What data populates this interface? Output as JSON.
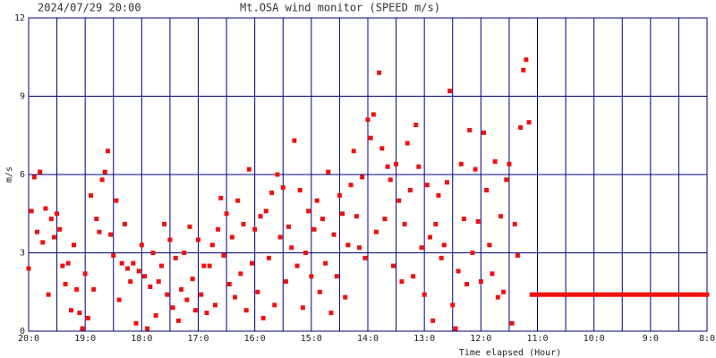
{
  "chart_data": {
    "type": "scatter",
    "timestamp": "2024/07/29 20:00",
    "title": "Mt.OSA wind monitor (SPEED m/s)",
    "ylabel": "m/s",
    "xlabel": "Time elapsed (Hour)",
    "xlim": [
      0,
      12
    ],
    "ylim": [
      0,
      12
    ],
    "xticks": [
      {
        "value": 0,
        "label": "20:0"
      },
      {
        "value": 1,
        "label": "19:0"
      },
      {
        "value": 2,
        "label": "18:0"
      },
      {
        "value": 3,
        "label": "17:0"
      },
      {
        "value": 4,
        "label": "16:0"
      },
      {
        "value": 5,
        "label": "15:0"
      },
      {
        "value": 6,
        "label": "14:0"
      },
      {
        "value": 7,
        "label": "13:0"
      },
      {
        "value": 8,
        "label": "12:0"
      },
      {
        "value": 9,
        "label": "11:0"
      },
      {
        "value": 10,
        "label": "10:0"
      },
      {
        "value": 11,
        "label": "9:0"
      },
      {
        "value": 12,
        "label": "8:0"
      }
    ],
    "yticks": [
      0,
      3,
      6,
      9,
      12
    ],
    "grid": true,
    "grid_color": "#000080",
    "series": [
      {
        "color": "#ee1111",
        "x": [
          0,
          0.05,
          0.1,
          0.15,
          0.2,
          0.25,
          0.3,
          0.35,
          0.4,
          0.45,
          0.5,
          0.55,
          0.6,
          0.65,
          0.7,
          0.75,
          0.8,
          0.85,
          0.9,
          0.95,
          1,
          1.05,
          1.1,
          1.15,
          1.2,
          1.25,
          1.3,
          1.35,
          1.4,
          1.45,
          1.5,
          1.55,
          1.6,
          1.65,
          1.7,
          1.75,
          1.8,
          1.85,
          1.9,
          1.95,
          2,
          2.05,
          2.1,
          2.15,
          2.2,
          2.25,
          2.3,
          2.35,
          2.4,
          2.45,
          2.5,
          2.55,
          2.6,
          2.65,
          2.7,
          2.75,
          2.8,
          2.85,
          2.9,
          2.95,
          3,
          3.05,
          3.1,
          3.15,
          3.2,
          3.25,
          3.3,
          3.35,
          3.4,
          3.45,
          3.5,
          3.55,
          3.6,
          3.65,
          3.7,
          3.75,
          3.8,
          3.85,
          3.9,
          3.95,
          4,
          4.05,
          4.1,
          4.15,
          4.2,
          4.25,
          4.3,
          4.35,
          4.4,
          4.45,
          4.5,
          4.55,
          4.6,
          4.65,
          4.7,
          4.75,
          4.8,
          4.85,
          4.9,
          4.95,
          5,
          5.05,
          5.1,
          5.15,
          5.2,
          5.25,
          5.3,
          5.35,
          5.4,
          5.45,
          5.5,
          5.55,
          5.6,
          5.65,
          5.7,
          5.75,
          5.8,
          5.85,
          5.9,
          5.95,
          6,
          6.05,
          6.1,
          6.15,
          6.2,
          6.25,
          6.3,
          6.35,
          6.4,
          6.45,
          6.5,
          6.55,
          6.6,
          6.65,
          6.7,
          6.75,
          6.8,
          6.85,
          6.9,
          6.95,
          7,
          7.05,
          7.1,
          7.15,
          7.2,
          7.25,
          7.3,
          7.35,
          7.4,
          7.45,
          7.5,
          7.55,
          7.6,
          7.65,
          7.7,
          7.75,
          7.8,
          7.85,
          7.9,
          7.95,
          8,
          8.05,
          8.1,
          8.15,
          8.2,
          8.25,
          8.3,
          8.35,
          8.4,
          8.45,
          8.5,
          8.55,
          8.6,
          8.65,
          8.7,
          8.75,
          8.8,
          8.85,
          8.9,
          8.95,
          9,
          9.05,
          9.1,
          9.15,
          9.2,
          9.25,
          9.3,
          9.35,
          9.4,
          9.45,
          9.5,
          9.55,
          9.6,
          9.65,
          9.7,
          9.75,
          9.8,
          9.85,
          9.9,
          9.95,
          10,
          10.05,
          10.1,
          10.15,
          10.2,
          10.25,
          10.3,
          10.35,
          10.4,
          10.45,
          10.5,
          10.55,
          10.6,
          10.65,
          10.7,
          10.75,
          10.8,
          10.85,
          10.9,
          10.95,
          11,
          11.05,
          11.1,
          11.15,
          11.2,
          11.25,
          11.3,
          11.35,
          11.4,
          11.45,
          11.5,
          11.55,
          11.6,
          11.65,
          11.7,
          11.75,
          11.8,
          11.85,
          11.9,
          11.95,
          12
        ],
        "values": [
          2.4,
          4.6,
          5.9,
          3.8,
          6.1,
          3.4,
          4.7,
          1.4,
          4.3,
          3.6,
          4.5,
          3.9,
          2.5,
          1.8,
          2.6,
          0.8,
          3.3,
          1.6,
          0.7,
          0.1,
          2.2,
          0.5,
          5.2,
          1.6,
          4.3,
          3.8,
          5.8,
          6.1,
          6.9,
          3.7,
          2.9,
          5.0,
          1.2,
          2.6,
          4.1,
          2.4,
          1.9,
          2.6,
          0.3,
          2.3,
          3.3,
          2.1,
          0.1,
          1.7,
          3.0,
          0.6,
          1.9,
          2.5,
          4.1,
          1.4,
          3.5,
          0.9,
          2.8,
          0.4,
          1.6,
          3.0,
          1.2,
          4.0,
          2.0,
          0.8,
          3.5,
          1.4,
          2.5,
          0.7,
          2.5,
          3.3,
          1.0,
          3.9,
          5.1,
          2.9,
          4.5,
          1.8,
          3.6,
          1.3,
          5.0,
          2.2,
          4.1,
          0.8,
          6.2,
          2.6,
          3.9,
          1.5,
          4.4,
          0.5,
          4.6,
          2.8,
          5.3,
          1.0,
          6.0,
          3.6,
          5.5,
          1.9,
          4.0,
          3.2,
          7.3,
          2.5,
          5.4,
          0.9,
          3.0,
          4.6,
          2.1,
          3.9,
          5.0,
          1.5,
          4.3,
          2.6,
          6.1,
          0.7,
          3.7,
          2.1,
          5.2,
          4.5,
          1.3,
          3.3,
          5.6,
          6.9,
          4.4,
          3.2,
          5.9,
          2.8,
          8.1,
          7.4,
          8.3,
          3.8,
          9.9,
          7.0,
          4.3,
          6.3,
          5.8,
          2.5,
          6.4,
          5.0,
          1.9,
          4.1,
          7.2,
          5.4,
          2.1,
          7.9,
          6.3,
          3.2,
          1.4,
          5.6,
          3.6,
          0.4,
          4.1,
          5.2,
          2.8,
          3.3,
          5.7,
          9.2,
          1.0,
          0.1,
          2.3,
          6.4,
          4.3,
          1.8,
          7.7,
          3.0,
          6.2,
          4.2,
          1.9,
          7.6,
          5.4,
          3.3,
          2.2,
          6.5,
          1.3,
          4.4,
          1.5,
          5.8,
          6.4,
          0.3,
          4.1,
          2.9,
          7.8,
          10.0,
          10.4,
          8.0,
          1.4,
          1.4,
          1.4,
          1.4,
          1.4,
          1.4,
          1.4,
          1.4,
          1.4,
          1.4,
          1.4,
          1.4,
          1.4,
          1.4,
          1.4,
          1.4,
          1.4,
          1.4,
          1.4,
          1.4,
          1.4,
          1.4,
          1.4,
          1.4,
          1.4,
          1.4,
          1.4,
          1.4,
          1.4,
          1.4,
          1.4,
          1.4,
          1.4,
          1.4,
          1.4,
          1.4,
          1.4,
          1.4,
          1.4,
          1.4,
          1.4,
          1.4,
          1.4,
          1.4,
          1.4,
          1.4,
          1.4,
          1.4,
          1.4,
          1.4,
          1.4,
          1.4,
          1.4,
          1.4,
          1.4,
          1.4,
          1.4,
          1.4,
          1.4,
          1.4,
          1.4,
          1.4,
          1.4
        ]
      }
    ]
  }
}
